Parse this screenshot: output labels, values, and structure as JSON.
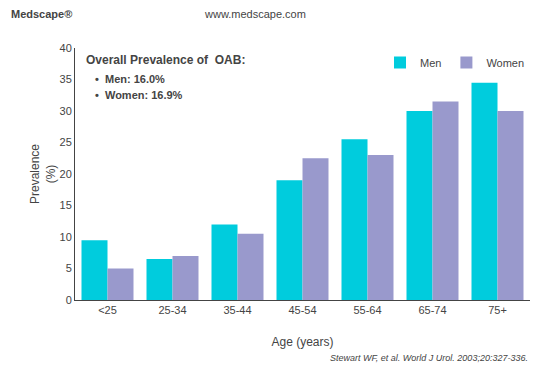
{
  "chart_data": {
    "type": "bar",
    "title": "Overall Prevalence of  OAB:",
    "xlabel": "Age (years)",
    "ylabel": "Prevalence\n(%)",
    "categories": [
      "<25",
      "25-34",
      "35-44",
      "45-54",
      "55-64",
      "65-74",
      "75+"
    ],
    "series": [
      {
        "name": "Men",
        "color": "#00CCDD",
        "values": [
          9.5,
          6.5,
          12.0,
          19.0,
          25.5,
          30.0,
          34.5
        ]
      },
      {
        "name": "Women",
        "color": "#9999CC",
        "values": [
          5.0,
          7.0,
          10.5,
          22.5,
          23.0,
          31.5,
          30.0
        ]
      }
    ],
    "ylim": [
      0,
      40
    ],
    "yticks": [
      0,
      5,
      10,
      15,
      20,
      25,
      30,
      35,
      40
    ],
    "grid": false,
    "legend": "upper right",
    "annotations": [
      "Medscape®",
      "www.medscape.com",
      "•  Men: 16.0%",
      "•  Women: 16.9%",
      "Stewart WF, et al. World J Urol. 2003;20:327-336."
    ]
  }
}
